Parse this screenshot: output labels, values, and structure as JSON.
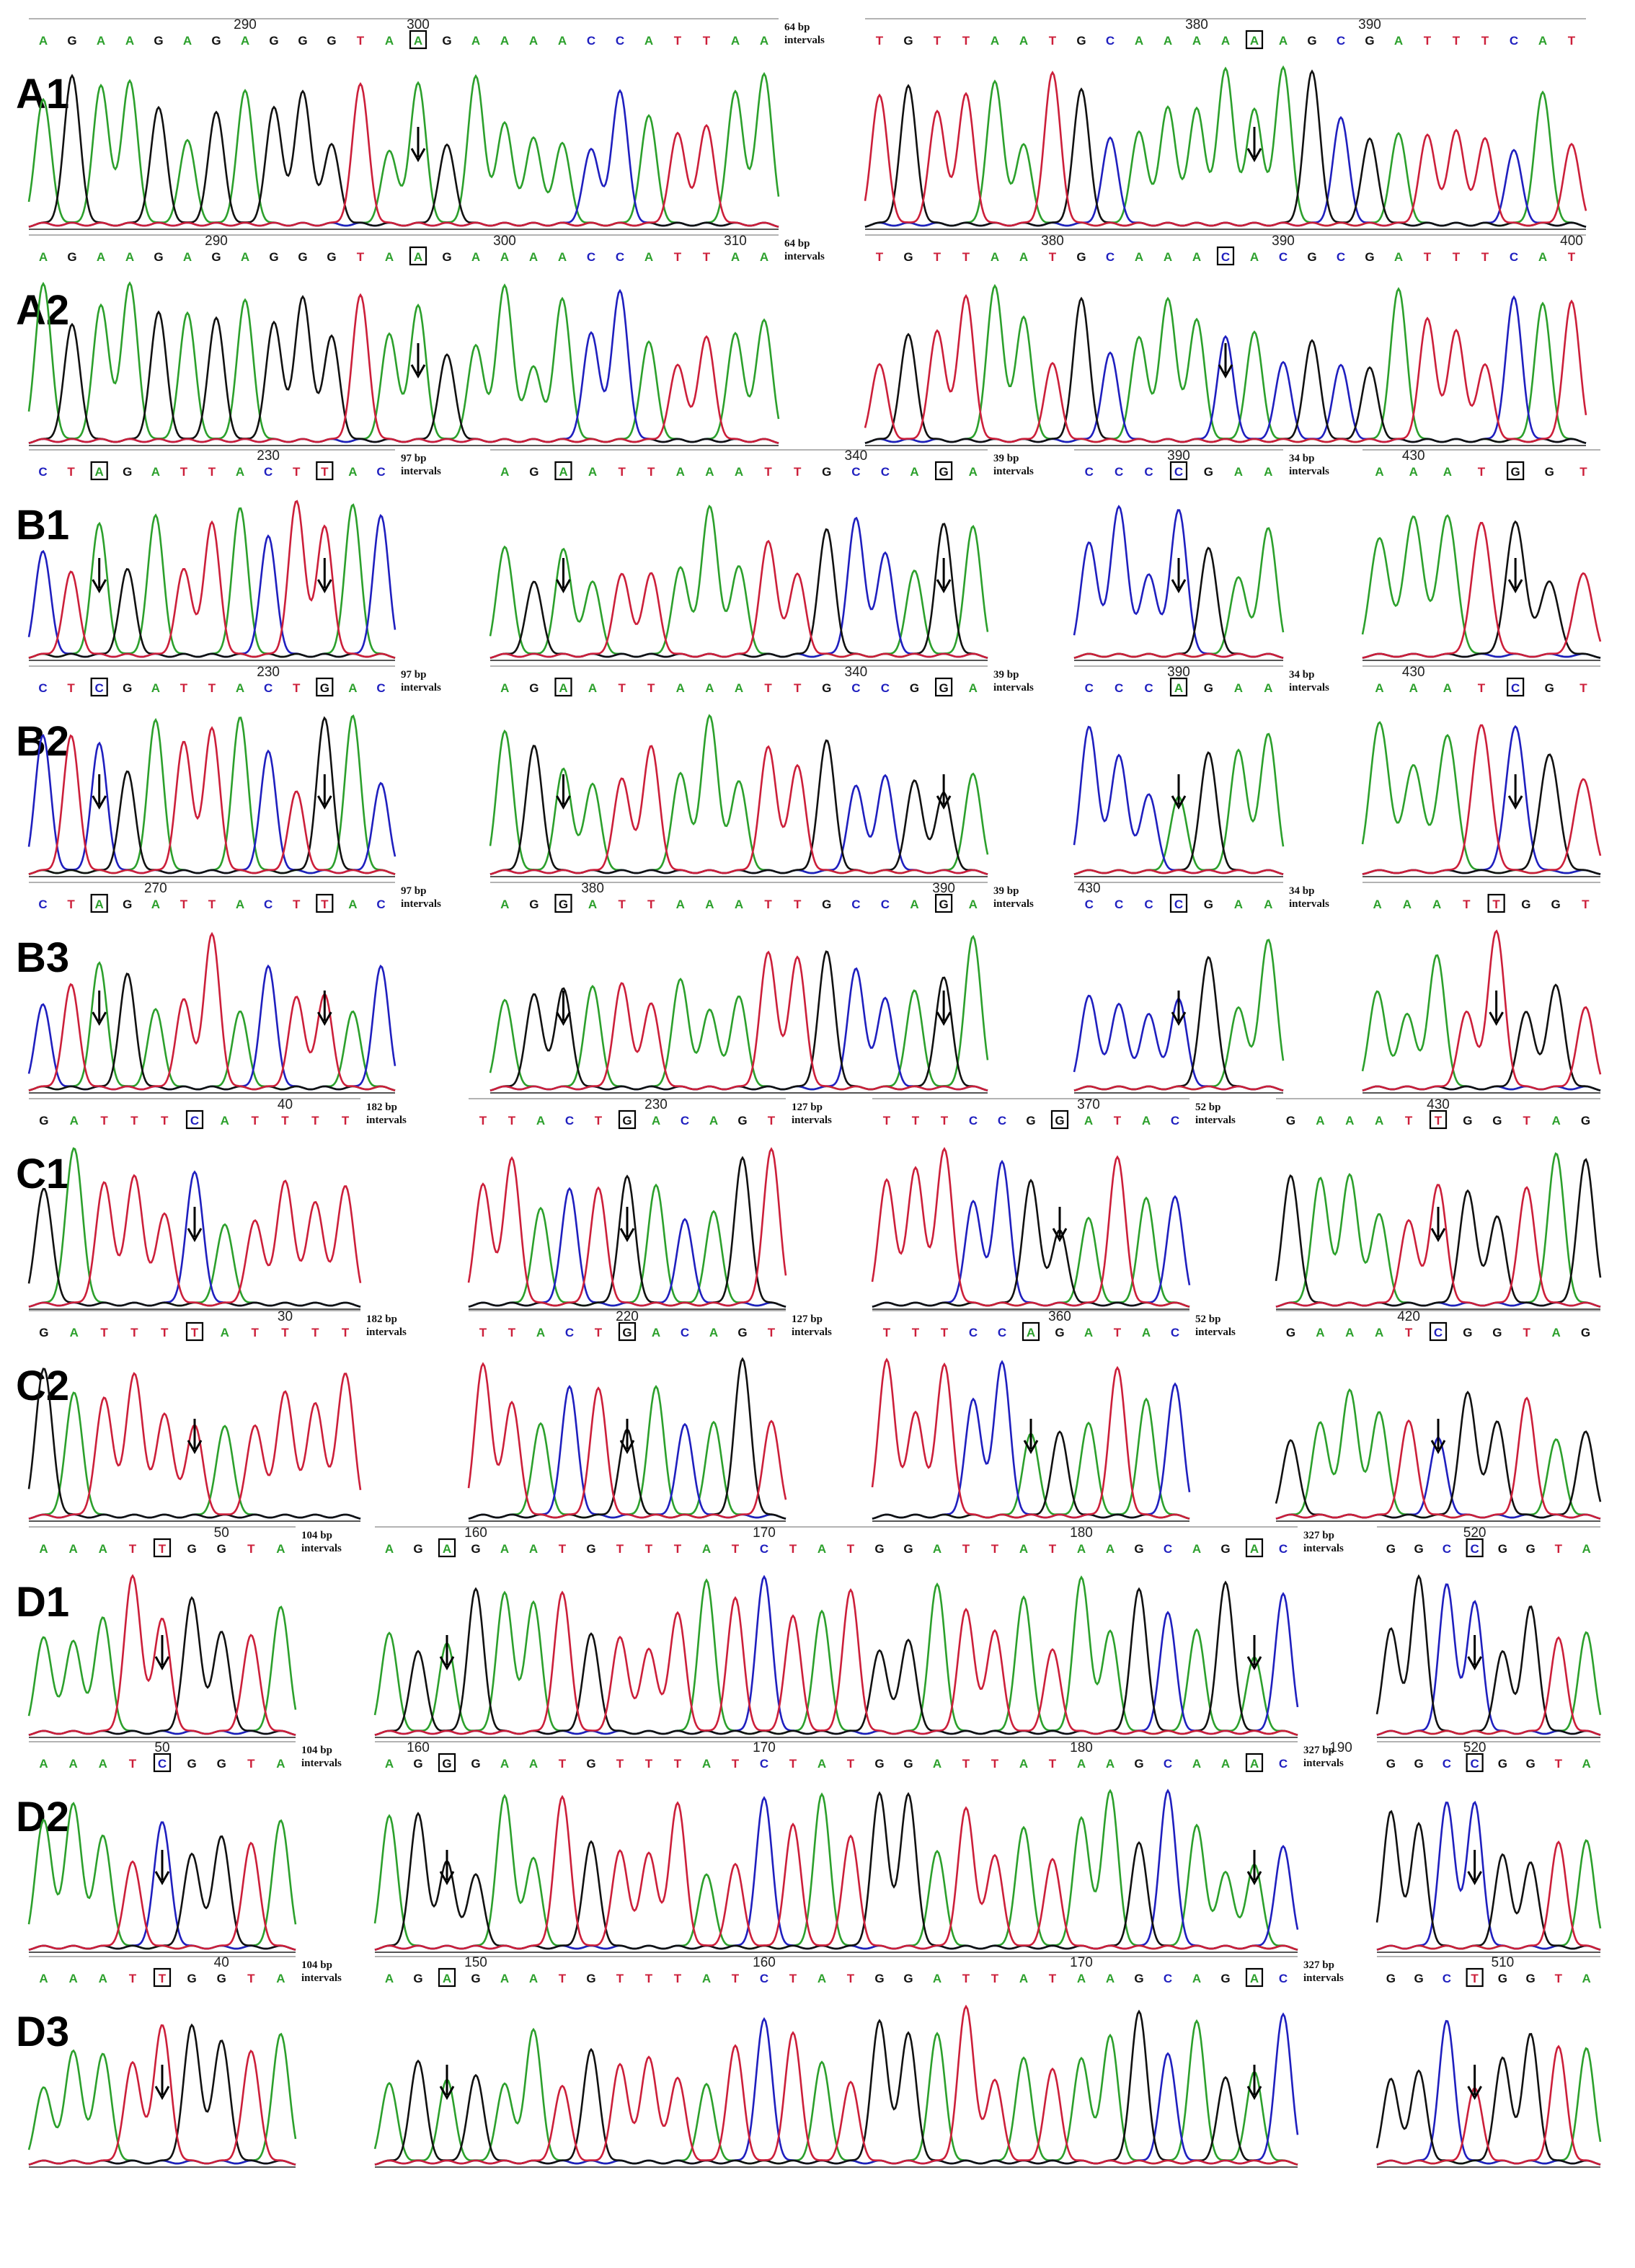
{
  "colors": {
    "A": "#2ca02c",
    "C": "#1f1fbf",
    "G": "#111111",
    "T": "#cc1f3a"
  },
  "gap_suffix": "intervals",
  "chart_data": {
    "type": "chromatogram",
    "rows": [
      {
        "label": "A1",
        "segments": [
          {
            "ticks": [
              {
                "i": 7,
                "n": "290"
              },
              {
                "i": 13,
                "n": "300"
              }
            ],
            "seq": "AGAAGAGAGGGTAAGAAAACCATTAA",
            "boxes": [
              13
            ],
            "gap": "64 bp"
          },
          {
            "ticks": [
              {
                "i": 11,
                "n": "380"
              },
              {
                "i": 17,
                "n": "390"
              }
            ],
            "seq": "TGTTAATGCAAAAAAGCGATTTCAT",
            "boxes": [
              13
            ]
          }
        ]
      },
      {
        "label": "A2",
        "segments": [
          {
            "ticks": [
              {
                "i": 6,
                "n": "290"
              },
              {
                "i": 16,
                "n": "300"
              },
              {
                "i": 24,
                "n": "310"
              }
            ],
            "seq": "AGAAGAGAGGGTAAGAAAACCATTAA",
            "boxes": [
              13
            ],
            "gap": "64 bp"
          },
          {
            "ticks": [
              {
                "i": 6,
                "n": "380"
              },
              {
                "i": 14,
                "n": "390"
              },
              {
                "i": 24,
                "n": "400"
              }
            ],
            "seq": "TGTTAATGCAAACACGCGATTTCAT",
            "boxes": [
              12
            ]
          }
        ]
      },
      {
        "label": "B1",
        "segments": [
          {
            "ticks": [
              {
                "i": 8,
                "n": "230"
              }
            ],
            "seq": "CTAGATTACTTAC",
            "boxes": [
              2,
              10
            ],
            "gap": "97 bp"
          },
          {
            "ticks": [
              {
                "i": 12,
                "n": "340"
              }
            ],
            "seq": "AGAATTAAATTGCCAGA",
            "boxes": [
              2,
              15
            ],
            "gap": "39 bp"
          },
          {
            "ticks": [
              {
                "i": 3,
                "n": "390"
              }
            ],
            "seq": "CCCCGAA",
            "boxes": [
              3
            ],
            "gap": "34 bp"
          },
          {
            "ticks": [
              {
                "i": 1,
                "n": "430"
              }
            ],
            "seq": "AAATGGT",
            "boxes": [
              4
            ]
          }
        ]
      },
      {
        "label": "B2",
        "segments": [
          {
            "ticks": [
              {
                "i": 8,
                "n": "230"
              }
            ],
            "seq": "CTCGATTACTGAC",
            "boxes": [
              2,
              10
            ],
            "gap": "97 bp"
          },
          {
            "ticks": [
              {
                "i": 12,
                "n": "340"
              }
            ],
            "seq": "AGAATTAAATTGCCGGA",
            "boxes": [
              2,
              15
            ],
            "gap": "39 bp"
          },
          {
            "ticks": [
              {
                "i": 3,
                "n": "390"
              }
            ],
            "seq": "CCCAGAA",
            "boxes": [
              3
            ],
            "gap": "34 bp"
          },
          {
            "ticks": [
              {
                "i": 1,
                "n": "430"
              }
            ],
            "seq": "AAATCGT",
            "boxes": [
              4
            ]
          }
        ]
      },
      {
        "label": "B3",
        "segments": [
          {
            "ticks": [
              {
                "i": 4,
                "n": "270"
              }
            ],
            "seq": "CTAGATTACTTAC",
            "boxes": [
              2,
              10
            ],
            "gap": "97 bp"
          },
          {
            "ticks": [
              {
                "i": 3,
                "n": "380"
              },
              {
                "i": 15,
                "n": "390"
              }
            ],
            "seq": "AGGATTAAATTGCCAGA",
            "boxes": [
              2,
              15
            ],
            "gap": "39 bp"
          },
          {
            "ticks": [
              {
                "i": 0,
                "n": "430"
              }
            ],
            "seq": "CCCCGAA",
            "boxes": [
              3
            ],
            "gap": "34 bp"
          },
          {
            "ticks": [],
            "seq": "AAATTGGT",
            "boxes": [
              4
            ]
          }
        ]
      },
      {
        "label": "C1",
        "segments": [
          {
            "ticks": [
              {
                "i": 8,
                "n": "40"
              }
            ],
            "seq": "GATTTCATTTT",
            "boxes": [
              5
            ],
            "gap": "182 bp"
          },
          {
            "ticks": [
              {
                "i": 6,
                "n": "230"
              }
            ],
            "seq": "TTACTGACAGT",
            "boxes": [
              5
            ],
            "gap": "127 bp"
          },
          {
            "ticks": [
              {
                "i": 7,
                "n": "370"
              }
            ],
            "seq": "TTTCCGGATAC",
            "boxes": [
              6
            ],
            "gap": "52 bp"
          },
          {
            "ticks": [
              {
                "i": 5,
                "n": "430"
              }
            ],
            "seq": "GAAATTGGTAG",
            "boxes": [
              5
            ]
          }
        ]
      },
      {
        "label": "C2",
        "segments": [
          {
            "ticks": [
              {
                "i": 8,
                "n": "30"
              }
            ],
            "seq": "GATTTTATTTT",
            "boxes": [
              5
            ],
            "gap": "182 bp"
          },
          {
            "ticks": [
              {
                "i": 5,
                "n": "220"
              }
            ],
            "seq": "TTACTGACAGT",
            "boxes": [
              5
            ],
            "gap": "127 bp"
          },
          {
            "ticks": [
              {
                "i": 6,
                "n": "360"
              }
            ],
            "seq": "TTTCCAGATAC",
            "boxes": [
              5
            ],
            "gap": "52 bp"
          },
          {
            "ticks": [
              {
                "i": 4,
                "n": "420"
              }
            ],
            "seq": "GAAATCGGTAG",
            "boxes": [
              5
            ]
          }
        ]
      },
      {
        "label": "D1",
        "segments": [
          {
            "ticks": [
              {
                "i": 6,
                "n": "50"
              }
            ],
            "seq": "AAATTGGTA",
            "boxes": [
              4
            ],
            "gap": "104 bp"
          },
          {
            "ticks": [
              {
                "i": 3,
                "n": "160"
              },
              {
                "i": 13,
                "n": "170"
              },
              {
                "i": 24,
                "n": "180"
              }
            ],
            "seq": "AGAGAATGTTTATCTATGGATTATAAGCAGAC",
            "boxes": [
              2,
              30
            ],
            "gap": "327 bp"
          },
          {
            "ticks": [
              {
                "i": 3,
                "n": "520"
              }
            ],
            "seq": "GGCCGGTA",
            "boxes": [
              3
            ]
          }
        ]
      },
      {
        "label": "D2",
        "segments": [
          {
            "ticks": [
              {
                "i": 4,
                "n": "50"
              }
            ],
            "seq": "AAATCGGTA",
            "boxes": [
              4
            ],
            "gap": "104 bp"
          },
          {
            "ticks": [
              {
                "i": 1,
                "n": "160"
              },
              {
                "i": 13,
                "n": "170"
              },
              {
                "i": 24,
                "n": "180"
              },
              {
                "i": 33,
                "n": "190"
              }
            ],
            "seq": "AGGGAATGTTTATCTATGGATTATAAGCAAAC",
            "boxes": [
              2,
              30
            ],
            "gap": "327 bp"
          },
          {
            "ticks": [
              {
                "i": 3,
                "n": "520"
              }
            ],
            "seq": "GGCCGGTA",
            "boxes": [
              3
            ]
          }
        ]
      },
      {
        "label": "D3",
        "segments": [
          {
            "ticks": [
              {
                "i": 6,
                "n": "40"
              }
            ],
            "seq": "AAATTGGTA",
            "boxes": [
              4
            ],
            "gap": "104 bp"
          },
          {
            "ticks": [
              {
                "i": 3,
                "n": "150"
              },
              {
                "i": 13,
                "n": "160"
              },
              {
                "i": 24,
                "n": "170"
              }
            ],
            "seq": "AGAGAATGTTTATCTATGGATTATAAGCAGAC",
            "boxes": [
              2,
              30
            ],
            "gap": "327 bp"
          },
          {
            "ticks": [
              {
                "i": 4,
                "n": "510"
              }
            ],
            "seq": "GGCTGGTA",
            "boxes": [
              3
            ]
          }
        ]
      }
    ]
  }
}
